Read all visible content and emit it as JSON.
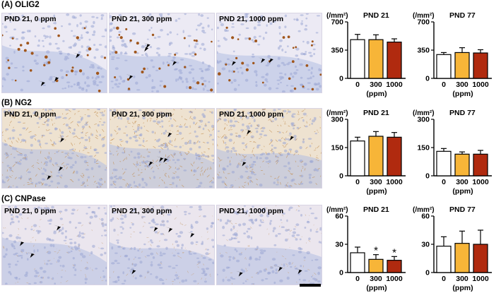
{
  "panels": [
    {
      "label": "(A) OLIG2",
      "images": [
        "PND 21, 0 ppm",
        "PND 21, 300 ppm",
        "PND 21, 1000 ppm"
      ],
      "texture": "olig2"
    },
    {
      "label": "(B) NG2",
      "images": [
        "PND 21, 0 ppm",
        "PND 21, 300 ppm",
        "PND 21, 1000 ppm"
      ],
      "texture": "ng2"
    },
    {
      "label": "(C) CNPase",
      "images": [
        "PND 21, 0 ppm",
        "PND 21, 300 ppm",
        "PND 21, 1000 ppm"
      ],
      "texture": "cnpase"
    }
  ],
  "colors": {
    "bar_0": "#ffffff",
    "bar_300": "#f7b538",
    "bar_1000": "#b02a0f",
    "hematoxylin": "#9aa6d4",
    "dab": "#a0561c"
  },
  "chart_data": [
    {
      "type": "bar",
      "row": 0,
      "title": "PND 21",
      "ylabel": "(/mm²)",
      "xlabel": "(ppm)",
      "categories": [
        "0",
        "300",
        "1000"
      ],
      "values": [
        480,
        480,
        450
      ],
      "errors": [
        65,
        60,
        40
      ],
      "ylim": [
        0,
        700
      ],
      "yticks": [
        0,
        350,
        700
      ],
      "significant": [
        false,
        false,
        false
      ]
    },
    {
      "type": "bar",
      "row": 0,
      "title": "PND 77",
      "ylabel": "(/mm²)",
      "xlabel": "(ppm)",
      "categories": [
        "0",
        "300",
        "1000"
      ],
      "values": [
        295,
        320,
        315
      ],
      "errors": [
        25,
        60,
        40
      ],
      "ylim": [
        0,
        700
      ],
      "yticks": [
        0,
        350,
        700
      ],
      "significant": [
        false,
        false,
        false
      ]
    },
    {
      "type": "bar",
      "row": 1,
      "title": "PND 21",
      "ylabel": "(/mm²)",
      "xlabel": "(ppm)",
      "categories": [
        "0",
        "300",
        "1000"
      ],
      "values": [
        185,
        210,
        205
      ],
      "errors": [
        20,
        25,
        25
      ],
      "ylim": [
        0,
        300
      ],
      "yticks": [
        0,
        150,
        300
      ],
      "significant": [
        false,
        false,
        false
      ]
    },
    {
      "type": "bar",
      "row": 1,
      "title": "PND 77",
      "ylabel": "(/mm²)",
      "xlabel": "(ppm)",
      "categories": [
        "0",
        "300",
        "1000"
      ],
      "values": [
        130,
        115,
        115
      ],
      "errors": [
        15,
        12,
        20
      ],
      "ylim": [
        0,
        300
      ],
      "yticks": [
        0,
        150,
        300
      ],
      "significant": [
        false,
        false,
        false
      ]
    },
    {
      "type": "bar",
      "row": 2,
      "title": "PND 21",
      "ylabel": "(/mm²)",
      "xlabel": "(ppm)",
      "categories": [
        "0",
        "300",
        "1000"
      ],
      "values": [
        21,
        14,
        13
      ],
      "errors": [
        6,
        5,
        4
      ],
      "ylim": [
        0,
        60
      ],
      "yticks": [
        0,
        30,
        60
      ],
      "significant": [
        false,
        true,
        true
      ],
      "sig_mark": "*"
    },
    {
      "type": "bar",
      "row": 2,
      "title": "PND 77",
      "ylabel": "(/mm²)",
      "xlabel": "(ppm)",
      "categories": [
        "0",
        "300",
        "1000"
      ],
      "values": [
        28,
        31,
        30
      ],
      "errors": [
        10,
        13,
        15
      ],
      "ylim": [
        0,
        60
      ],
      "yticks": [
        0,
        30,
        60
      ],
      "significant": [
        false,
        false,
        false
      ]
    }
  ]
}
